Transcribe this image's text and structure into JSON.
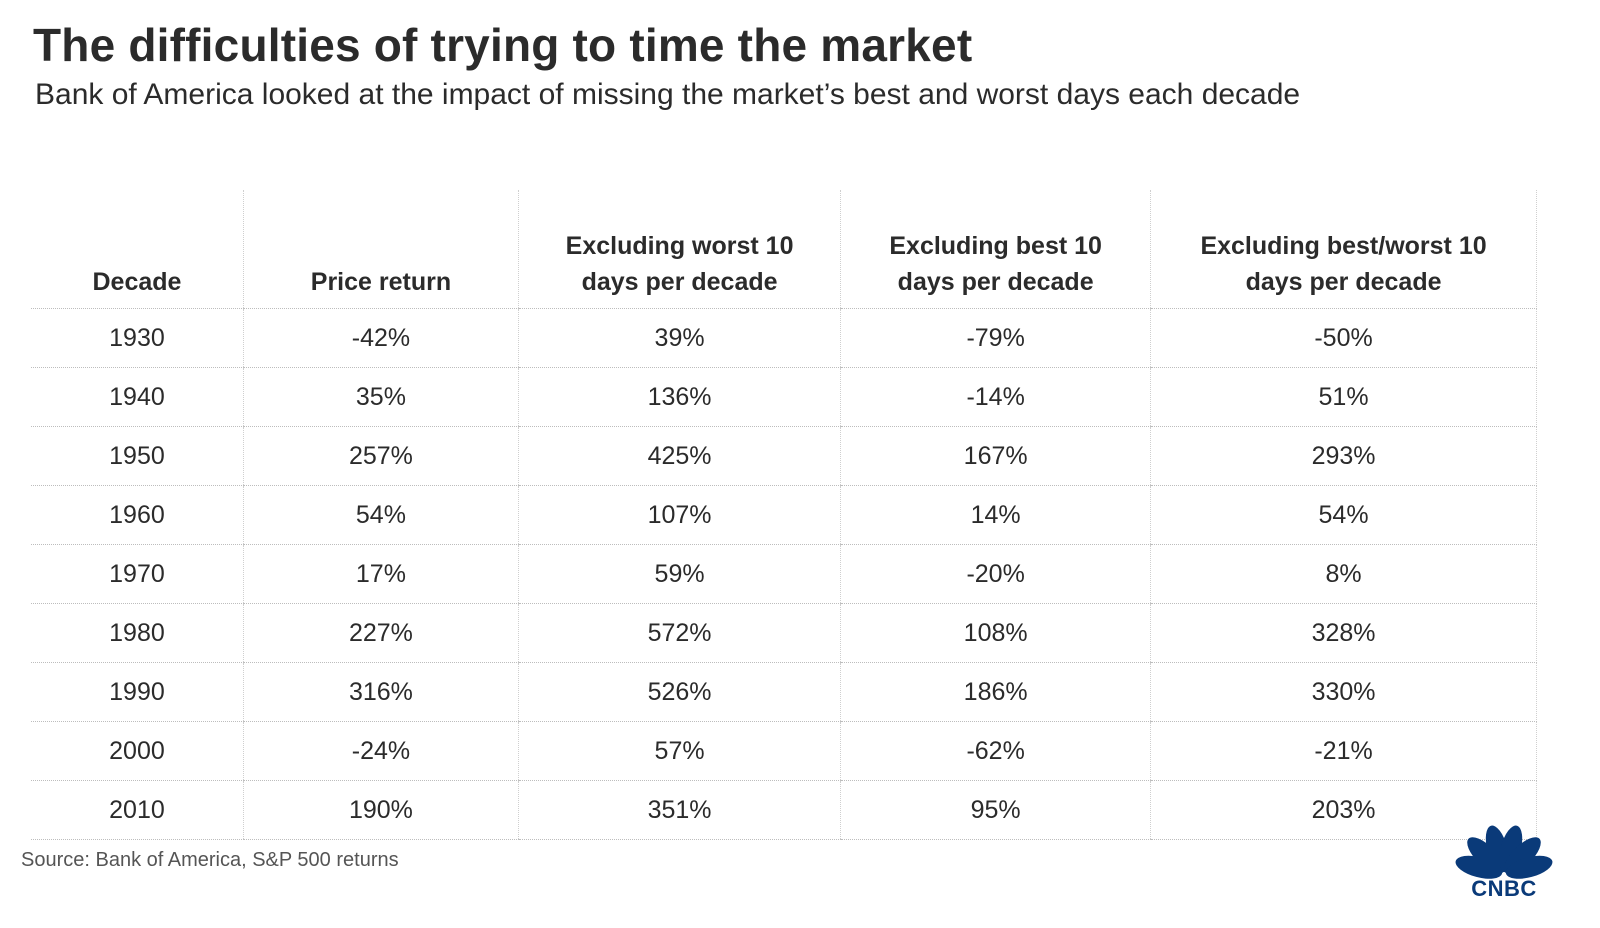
{
  "title": "The difficulties of trying to time the market",
  "subtitle": "Bank of America looked at the impact of missing the market’s best and worst days each decade",
  "source": "Source: Bank of America, S&P 500 returns",
  "logo": {
    "text": "CNBC",
    "color": "#0a3a79"
  },
  "chart_data": {
    "type": "table",
    "columns": [
      "Decade",
      "Price return",
      "Excluding worst 10 days per decade",
      "Excluding best 10 days per decade",
      "Excluding best/worst 10 days per decade"
    ],
    "rows": [
      [
        "1930",
        "-42%",
        "39%",
        "-79%",
        "-50%"
      ],
      [
        "1940",
        "35%",
        "136%",
        "-14%",
        "51%"
      ],
      [
        "1950",
        "257%",
        "425%",
        "167%",
        "293%"
      ],
      [
        "1960",
        "54%",
        "107%",
        "14%",
        "54%"
      ],
      [
        "1970",
        "17%",
        "59%",
        "-20%",
        "8%"
      ],
      [
        "1980",
        "227%",
        "572%",
        "108%",
        "328%"
      ],
      [
        "1990",
        "316%",
        "526%",
        "186%",
        "330%"
      ],
      [
        "2000",
        "-24%",
        "57%",
        "-62%",
        "-21%"
      ],
      [
        "2010",
        "190%",
        "351%",
        "95%",
        "203%"
      ]
    ]
  }
}
